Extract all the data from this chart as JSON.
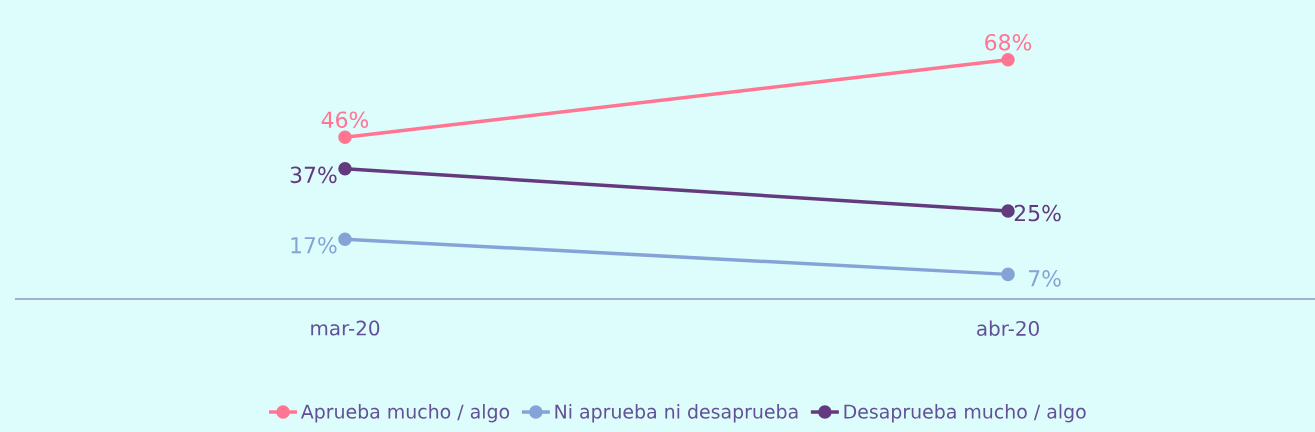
{
  "chart_data": {
    "type": "line",
    "categories": [
      "mar-20",
      "abr-20"
    ],
    "series": [
      {
        "name": "Aprueba mucho / algo",
        "color": "#ff7592",
        "values": [
          46,
          68
        ],
        "value_labels": [
          "46%",
          "68%"
        ]
      },
      {
        "name": "Ni aprueba ni desaprueba",
        "color": "#85a3d6",
        "values": [
          17,
          7
        ],
        "value_labels": [
          "17%",
          "7%"
        ]
      },
      {
        "name": "Desaprueba mucho / algo",
        "color": "#643a7f",
        "values": [
          37,
          25
        ],
        "value_labels": [
          "37%",
          "25%"
        ]
      }
    ],
    "marker": "circle",
    "line_style": "solid",
    "legend": "bottom",
    "grid": false
  }
}
